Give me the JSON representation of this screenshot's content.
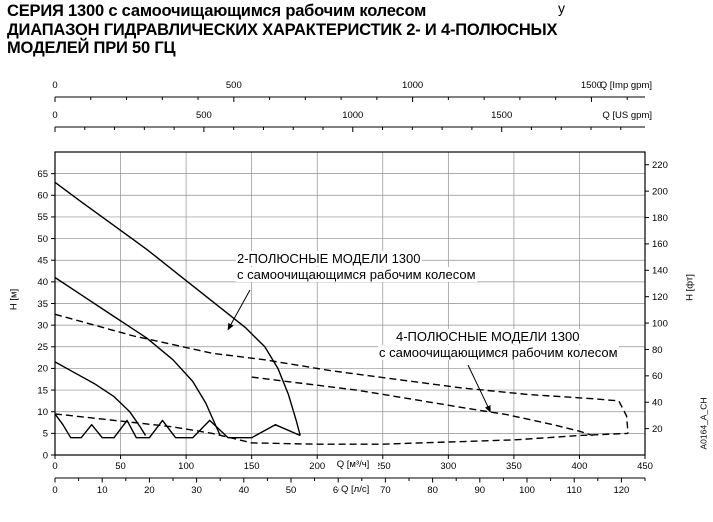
{
  "page": {
    "title_line1": "СЕРИЯ 1300 с самоочищающимся рабочим колесом",
    "title_line2": "ДИАПАЗОН ГИДРАВЛИЧЕСКИХ ХАРАКТЕРИСТИК 2- И 4-ПОЛЮСНЫХ",
    "title_line3": "МОДЕЛЕЙ ПРИ 50 ГЦ",
    "corner_fragment": "у",
    "drawing_code": "A0164_A_CH"
  },
  "chart_data": {
    "type": "line",
    "grid": true,
    "legend": "none",
    "colors": {
      "curve": "#000000",
      "grid": "#909090",
      "frame": "#000000",
      "text": "#000000",
      "background": "#ffffff"
    },
    "axes": {
      "left": {
        "label": "H [м]",
        "ticks": [
          0,
          5,
          10,
          15,
          20,
          25,
          30,
          35,
          40,
          45,
          50,
          55,
          60,
          65
        ],
        "range": [
          0,
          70
        ]
      },
      "right": {
        "label": "H [фт]",
        "ticks": [
          20,
          40,
          60,
          80,
          100,
          120,
          140,
          160,
          180,
          200,
          220
        ]
      },
      "bottom_primary": {
        "label": "Q [м³/ч]",
        "ticks": [
          0,
          50,
          100,
          150,
          200,
          250,
          300,
          350,
          400,
          450
        ],
        "range": [
          0,
          450
        ]
      },
      "bottom_secondary": {
        "label": "Q [л/с]",
        "ticks": [
          0,
          10,
          20,
          30,
          40,
          50,
          60,
          70,
          80,
          90,
          100,
          110,
          120
        ],
        "minor_step": 5,
        "max": 125
      },
      "top_us": {
        "label": "Q [US gpm]",
        "ticks": [
          0,
          500,
          1000,
          1500
        ],
        "minor_step": 100,
        "max": 1900
      },
      "top_imp": {
        "label": "Q [Imp gpm]",
        "ticks": [
          0,
          500,
          1000,
          1500
        ],
        "minor_step": 100,
        "max": 1600
      }
    },
    "unit_conversions": {
      "m3h_per_ls": 3.6,
      "m3h_per_usgpm": 0.22712,
      "m3h_per_impgpm": 0.27276,
      "m_per_ft": 0.3048
    },
    "series": [
      {
        "name": "2pole-upper-envelope",
        "style": "solid",
        "points": [
          [
            0,
            63
          ],
          [
            20,
            58.5
          ],
          [
            45,
            53
          ],
          [
            70,
            47.5
          ],
          [
            95,
            41.5
          ],
          [
            120,
            35.5
          ],
          [
            145,
            29.5
          ],
          [
            160,
            25
          ],
          [
            170,
            20
          ],
          [
            178,
            14
          ],
          [
            184,
            8
          ],
          [
            187,
            4.5
          ]
        ]
      },
      {
        "name": "2pole-mid-curve-a",
        "style": "solid",
        "points": [
          [
            0,
            41
          ],
          [
            20,
            37
          ],
          [
            45,
            32
          ],
          [
            70,
            27
          ],
          [
            90,
            22
          ],
          [
            105,
            17
          ],
          [
            115,
            12
          ],
          [
            123,
            6.5
          ],
          [
            126,
            4.5
          ]
        ]
      },
      {
        "name": "2pole-mid-curve-b",
        "style": "solid",
        "points": [
          [
            0,
            21.5
          ],
          [
            15,
            19
          ],
          [
            30,
            16.5
          ],
          [
            45,
            13.5
          ],
          [
            57,
            10
          ],
          [
            65,
            6.5
          ],
          [
            69,
            4.5
          ]
        ]
      },
      {
        "name": "2pole-lower-boundary",
        "style": "solid",
        "points": [
          [
            0,
            9.5
          ],
          [
            6,
            7
          ],
          [
            12,
            4
          ],
          [
            20,
            4
          ],
          [
            28,
            7
          ],
          [
            36,
            4
          ],
          [
            45,
            4
          ],
          [
            55,
            8
          ],
          [
            62,
            4
          ],
          [
            72,
            4
          ],
          [
            82,
            8
          ],
          [
            92,
            4
          ],
          [
            105,
            4
          ],
          [
            118,
            8
          ],
          [
            132,
            4
          ],
          [
            150,
            4
          ],
          [
            168,
            7
          ],
          [
            187,
            4.5
          ]
        ]
      },
      {
        "name": "4pole-upper-envelope",
        "style": "dashed",
        "points": [
          [
            0,
            32.5
          ],
          [
            30,
            30
          ],
          [
            60,
            27.5
          ],
          [
            90,
            25.5
          ],
          [
            120,
            23.5
          ],
          [
            160,
            22
          ],
          [
            210,
            19.5
          ],
          [
            260,
            17.5
          ],
          [
            310,
            15.5
          ],
          [
            360,
            14
          ],
          [
            410,
            13
          ],
          [
            430,
            12.5
          ],
          [
            436,
            9
          ],
          [
            437,
            5
          ]
        ]
      },
      {
        "name": "4pole-mid-curve",
        "style": "dashed",
        "points": [
          [
            150,
            18
          ],
          [
            190,
            16.5
          ],
          [
            230,
            15
          ],
          [
            270,
            13
          ],
          [
            310,
            11
          ],
          [
            345,
            9.3
          ],
          [
            380,
            7
          ],
          [
            400,
            5.5
          ],
          [
            410,
            4.5
          ]
        ]
      },
      {
        "name": "4pole-lower-boundary",
        "style": "dashed",
        "points": [
          [
            0,
            9.5
          ],
          [
            30,
            8.5
          ],
          [
            60,
            7.5
          ],
          [
            90,
            6.5
          ],
          [
            120,
            5
          ],
          [
            150,
            2.8
          ],
          [
            200,
            2.5
          ],
          [
            250,
            2.5
          ],
          [
            300,
            3
          ],
          [
            350,
            3.5
          ],
          [
            400,
            4.5
          ],
          [
            437,
            5
          ]
        ]
      }
    ],
    "annotations": [
      {
        "lines": [
          "2-ПОЛЮСНЫЕ МОДЕЛИ 1300",
          "с самоочищающимся рабочим колесом"
        ],
        "arrow_to": [
          132,
          29
        ]
      },
      {
        "lines": [
          "4-ПОЛЮСНЫЕ МОДЕЛИ 1300",
          "с самоочищающимся рабочим колесом"
        ],
        "arrow_to": [
          332,
          10
        ]
      }
    ]
  }
}
